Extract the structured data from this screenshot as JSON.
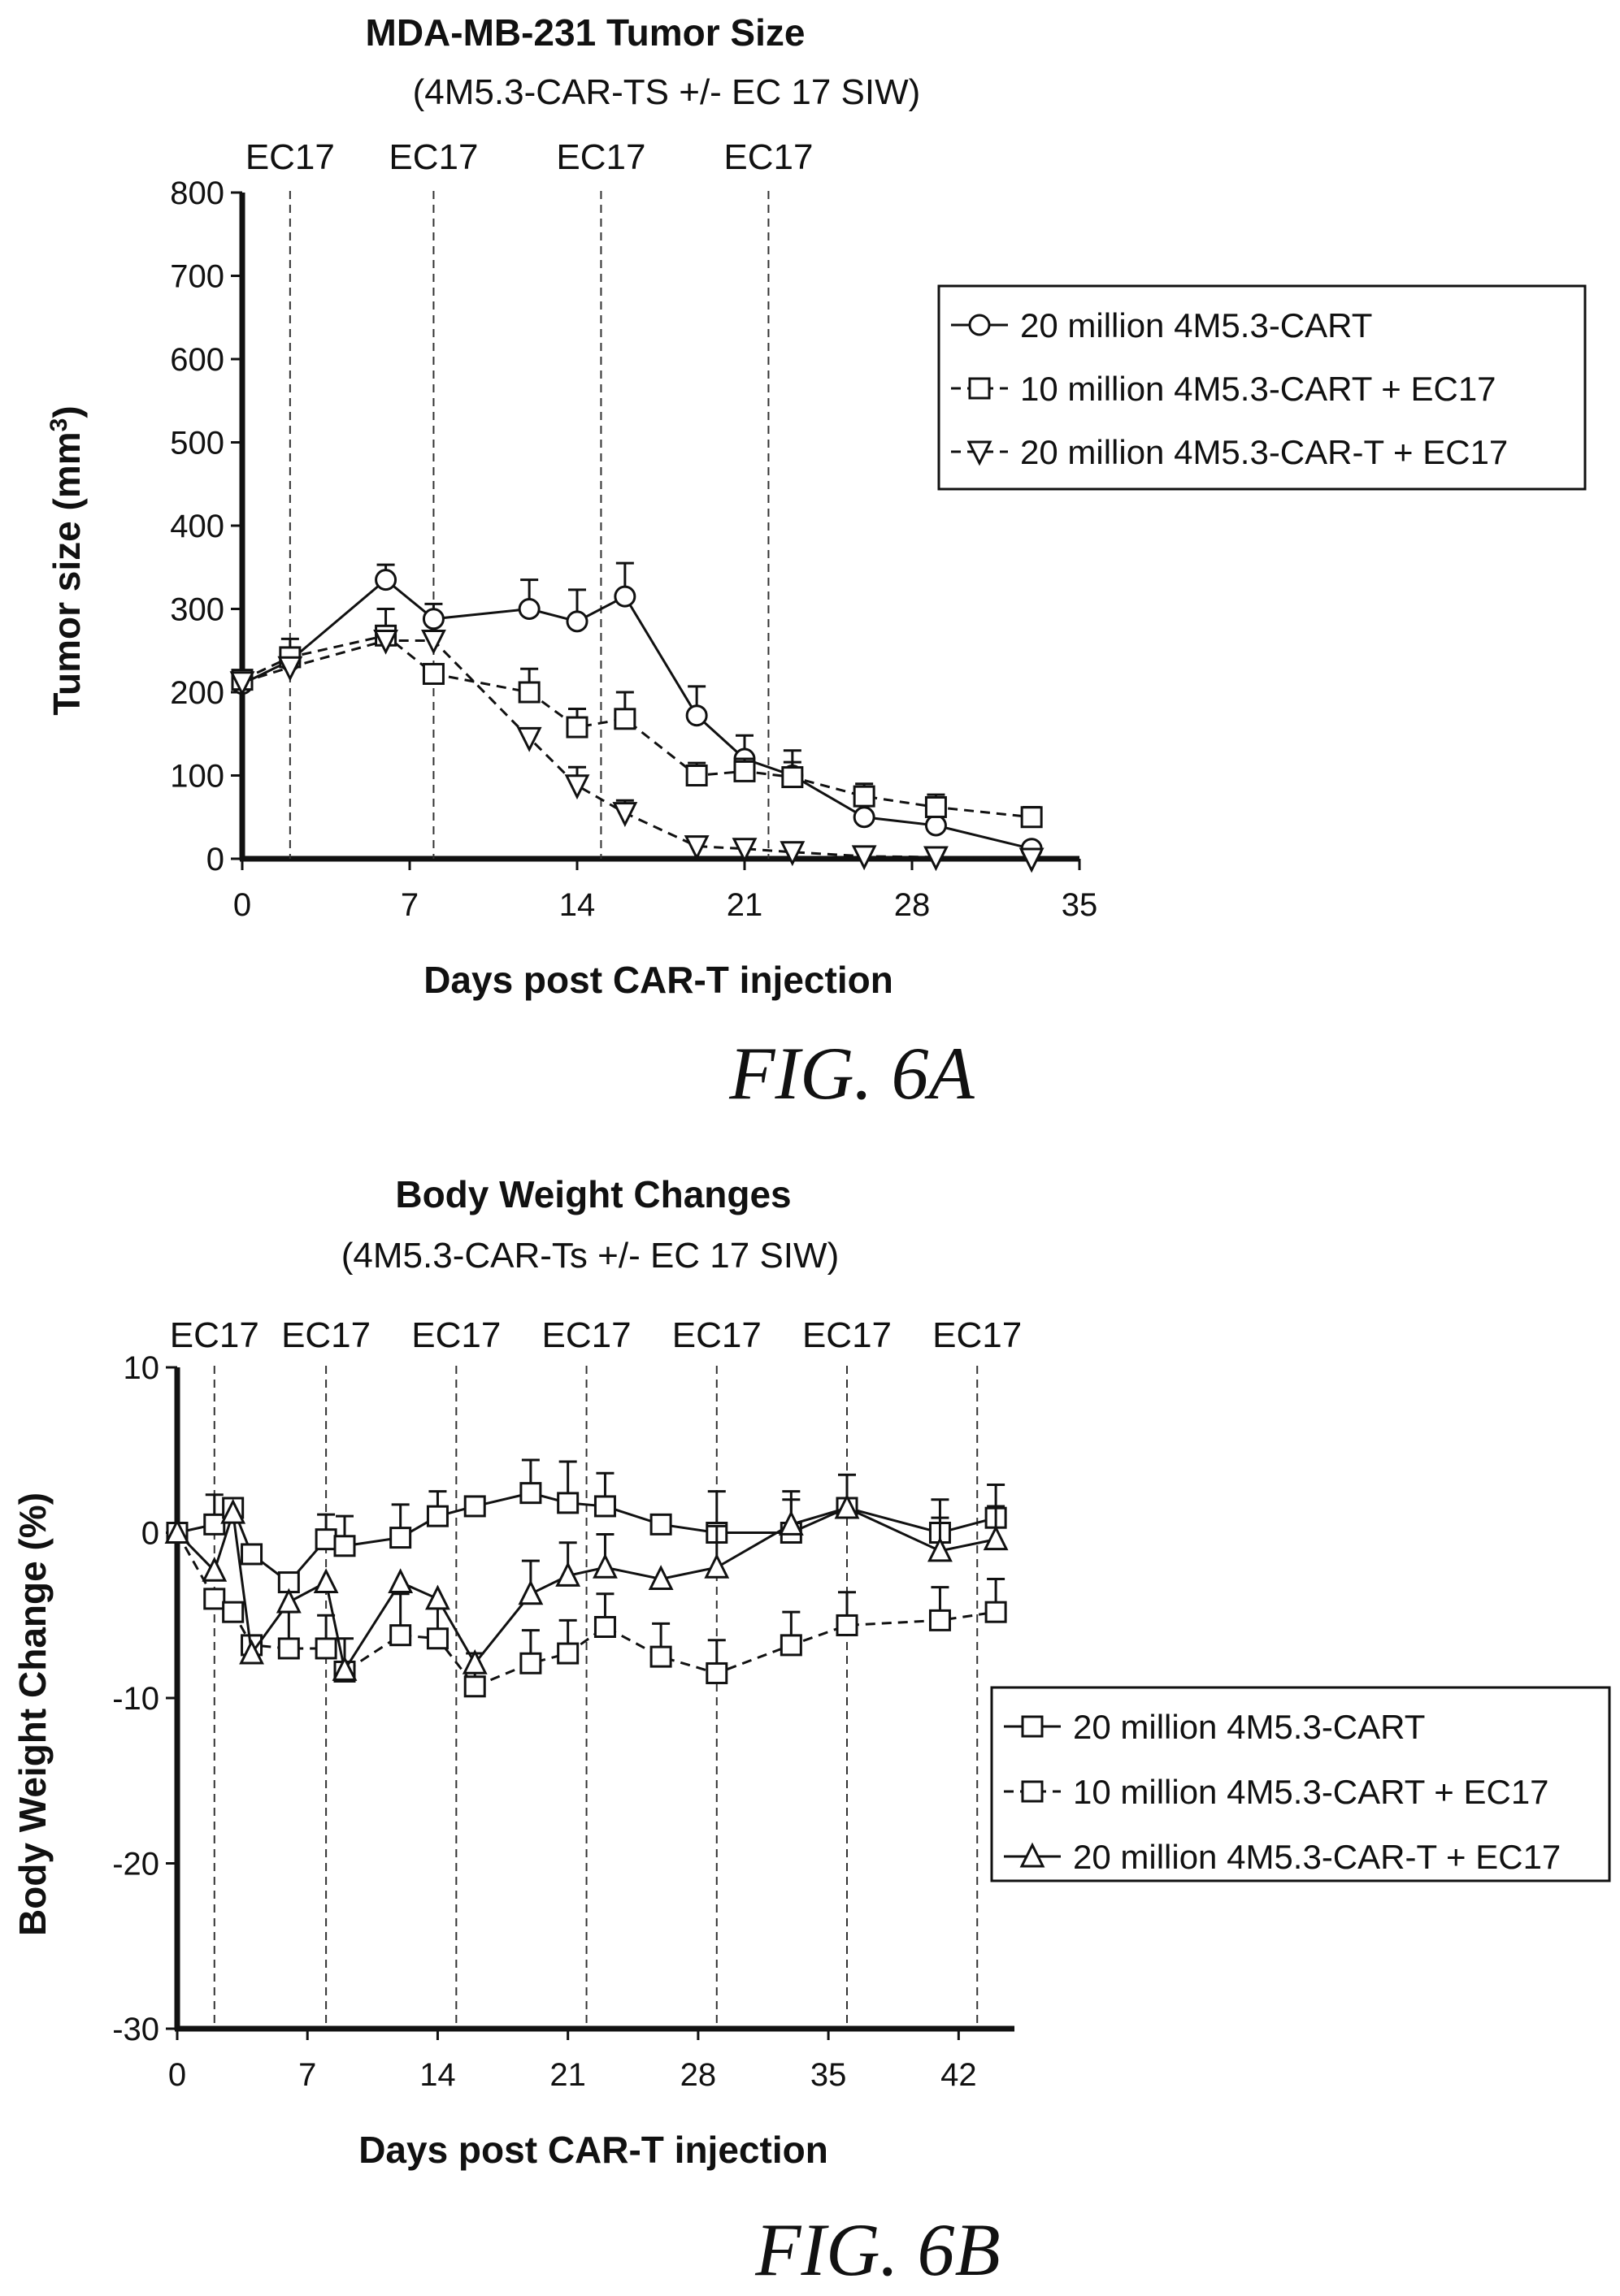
{
  "chart_data": [
    {
      "type": "line",
      "title": "MDA-MB-231 Tumor Size",
      "subtitle": "(4M5.3-CAR-TS +/- EC 17 SIW)",
      "xlabel": "Days post CAR-T injection",
      "ylabel": "Tumor size (mm³)",
      "xlim": [
        0,
        35
      ],
      "ylim": [
        0,
        800
      ],
      "xticks": [
        "0",
        "7",
        "14",
        "21",
        "28",
        "35"
      ],
      "yticks": [
        "0",
        "100",
        "200",
        "300",
        "400",
        "500",
        "600",
        "700",
        "800"
      ],
      "dose_label": "EC17",
      "dose_days": [
        2,
        8,
        15,
        22
      ],
      "legend_position": "top-right",
      "series": [
        {
          "name": "20 million 4M5.3-CART",
          "marker": "circle",
          "dash": "solid",
          "x": [
            0,
            2,
            6,
            8,
            12,
            14,
            16,
            19,
            21,
            23,
            26,
            29,
            33
          ],
          "y": [
            210,
            238,
            335,
            288,
            300,
            285,
            315,
            172,
            120,
            100,
            50,
            40,
            12
          ],
          "err": [
            0,
            0,
            18,
            18,
            35,
            38,
            40,
            35,
            28,
            30,
            0,
            0,
            0
          ]
        },
        {
          "name": "10 million 4M5.3-CART +  EC17",
          "marker": "square",
          "dash": "dashed",
          "x": [
            0,
            2,
            6,
            8,
            12,
            14,
            16,
            19,
            21,
            23,
            26,
            29,
            33
          ],
          "y": [
            215,
            242,
            268,
            222,
            200,
            158,
            168,
            100,
            105,
            98,
            75,
            62,
            50
          ],
          "err": [
            0,
            22,
            32,
            0,
            28,
            22,
            32,
            15,
            15,
            18,
            15,
            15,
            12
          ]
        },
        {
          "name": "20 million 4M5.3-CAR-T + EC17",
          "marker": "triangle-down",
          "dash": "dashed",
          "x": [
            0,
            2,
            6,
            8,
            12,
            14,
            16,
            19,
            21,
            23,
            26,
            29,
            33
          ],
          "y": [
            212,
            230,
            262,
            262,
            145,
            88,
            55,
            15,
            12,
            8,
            3,
            2,
            0
          ],
          "err": [
            0,
            0,
            0,
            0,
            0,
            22,
            15,
            0,
            0,
            0,
            0,
            0,
            0
          ]
        }
      ],
      "figure_label": "FIG. 6A"
    },
    {
      "type": "line",
      "title": "Body Weight Changes",
      "subtitle": "(4M5.3-CAR-Ts +/- EC 17 SIW)",
      "xlabel": "Days post CAR-T injection",
      "ylabel": "Body Weight Change (%)",
      "xlim": [
        0,
        45
      ],
      "ylim": [
        -30,
        10
      ],
      "xticks": [
        "0",
        "7",
        "14",
        "21",
        "28",
        "35",
        "42"
      ],
      "yticks": [
        "-30",
        "-20",
        "-10",
        "0",
        "10"
      ],
      "dose_label": "EC17",
      "dose_days": [
        2,
        8,
        15,
        22,
        29,
        36,
        43
      ],
      "legend_position": "right",
      "series": [
        {
          "name": "20 million 4M5.3-CART",
          "marker": "square",
          "dash": "solid",
          "x": [
            0,
            2,
            3,
            4,
            6,
            8,
            9,
            12,
            14,
            16,
            19,
            21,
            23,
            26,
            29,
            33,
            36,
            41,
            44
          ],
          "y": [
            0,
            0.5,
            1.5,
            -1.3,
            -3.0,
            -0.4,
            -0.8,
            -0.3,
            1.0,
            1.6,
            2.4,
            1.8,
            1.6,
            0.5,
            0,
            0,
            1.5,
            0,
            0.9
          ],
          "err": [
            0,
            1.8,
            0,
            0,
            0,
            1.5,
            1.8,
            2.0,
            1.5,
            0,
            2.0,
            2.5,
            2.0,
            0,
            2.5,
            2.0,
            2.0,
            2.0,
            2.0
          ]
        },
        {
          "name": "10 million 4M5.3-CART +  EC17",
          "marker": "square",
          "dash": "dashed",
          "x": [
            0,
            2,
            3,
            4,
            6,
            8,
            9,
            12,
            14,
            16,
            19,
            21,
            23,
            26,
            29,
            33,
            36,
            41,
            44
          ],
          "y": [
            0,
            -4.0,
            -4.8,
            -6.8,
            -7.0,
            -7.0,
            -8.4,
            -6.2,
            -6.4,
            -9.3,
            -7.9,
            -7.3,
            -5.7,
            -7.5,
            -8.5,
            -6.8,
            -5.6,
            -5.3,
            -4.8
          ],
          "err": [
            0,
            0,
            0,
            0,
            2.2,
            2.0,
            2.0,
            2.5,
            2.0,
            2.0,
            2.0,
            2.0,
            2.0,
            2.0,
            2.0,
            2.0,
            2.0,
            2.0,
            2.0
          ]
        },
        {
          "name": "20 million 4M5.3-CAR-T +  EC17",
          "marker": "triangle",
          "dash": "solid",
          "x": [
            0,
            2,
            3,
            4,
            6,
            8,
            9,
            12,
            14,
            16,
            19,
            21,
            23,
            26,
            29,
            33,
            36,
            41,
            44
          ],
          "y": [
            0,
            -2.3,
            1.2,
            -7.3,
            -4.2,
            -3.0,
            -8.3,
            -3.0,
            -4.0,
            -7.9,
            -3.7,
            -2.6,
            -2.1,
            -2.8,
            -2.1,
            0.5,
            1.5,
            -1.1,
            -0.4
          ],
          "err": [
            0,
            0,
            0,
            0,
            0,
            0,
            0,
            0,
            0,
            0,
            2.0,
            2.0,
            2.0,
            0,
            2.5,
            2.0,
            0,
            2.0,
            2.0
          ]
        }
      ],
      "figure_label": "FIG. 6B"
    }
  ]
}
